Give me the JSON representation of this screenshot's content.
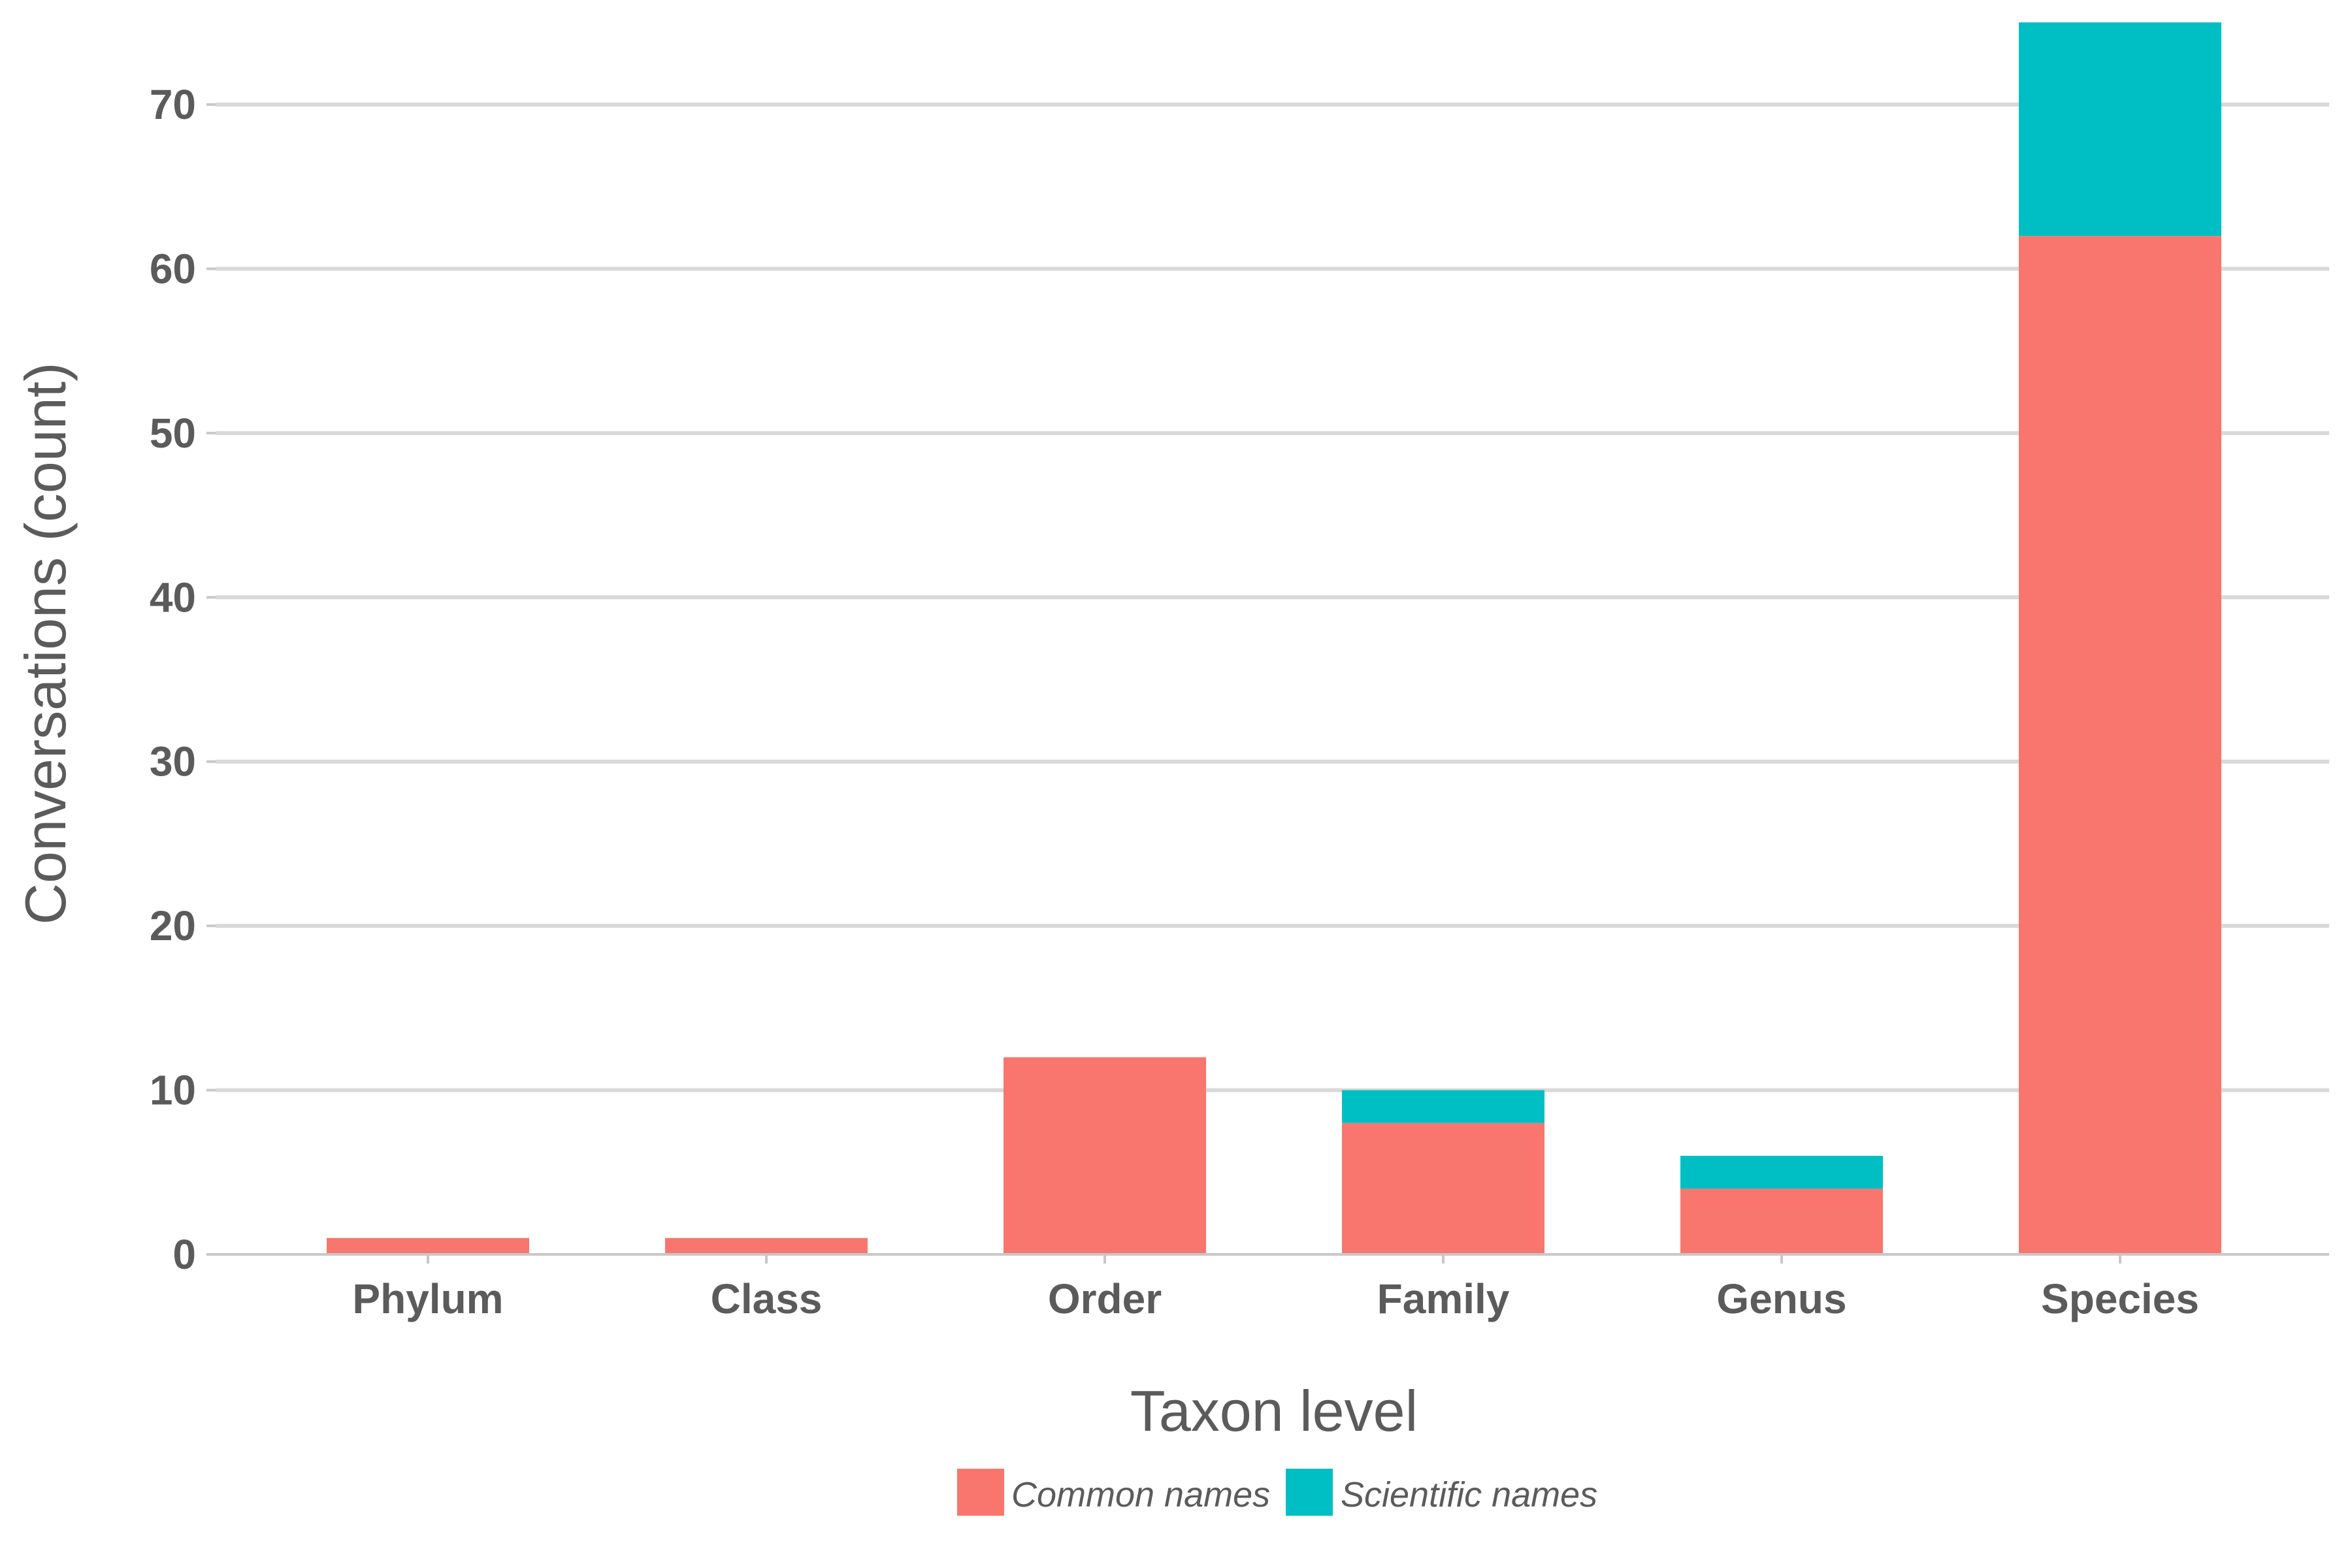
{
  "chart_data": {
    "type": "bar",
    "stacked": true,
    "xlabel": "Taxon level",
    "ylabel": "Conversations (count)",
    "categories": [
      "Phylum",
      "Class",
      "Order",
      "Family",
      "Genus",
      "Species"
    ],
    "series": [
      {
        "name": "Common names",
        "values": [
          1,
          1,
          12,
          8,
          4,
          62
        ],
        "color": "#F8766D"
      },
      {
        "name": "Scientific names",
        "values": [
          0,
          0,
          0,
          2,
          2,
          13
        ],
        "color": "#00BFC4"
      }
    ],
    "ylim": [
      0,
      75
    ],
    "yticks": [
      0,
      10,
      20,
      30,
      40,
      50,
      60,
      70
    ],
    "grid": "horizontal",
    "legend": "bottom"
  }
}
